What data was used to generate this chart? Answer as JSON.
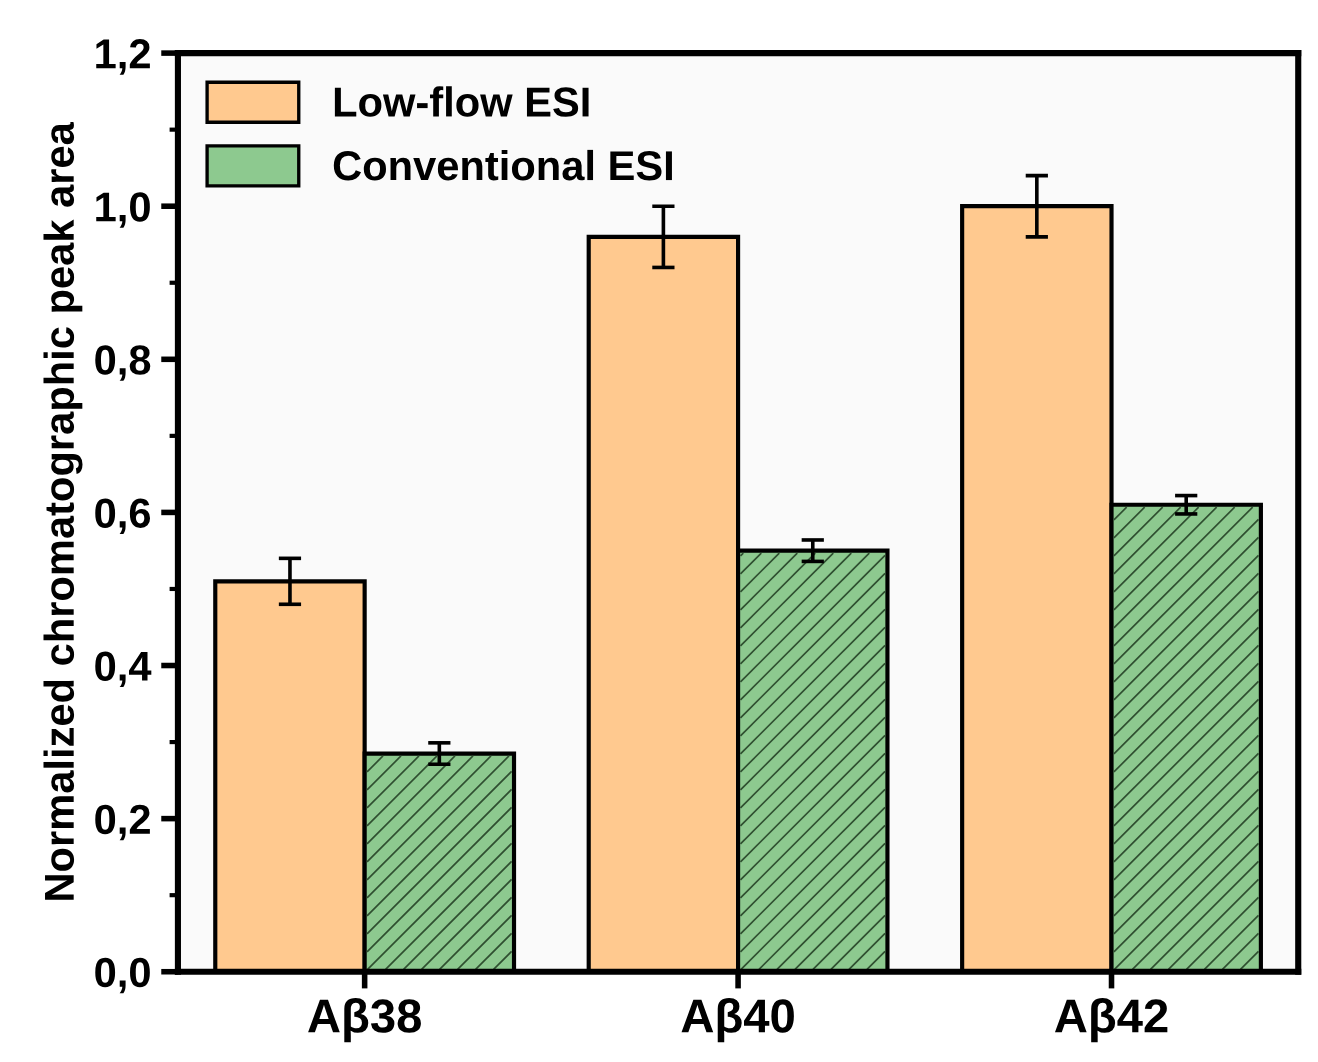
{
  "chart_data": {
    "type": "bar",
    "ylabel": "Normalized chromatographic peak area",
    "categories": [
      "Aβ38",
      "Aβ40",
      "Aβ42"
    ],
    "series": [
      {
        "name": "Low-flow ESI",
        "color": "#ffc98f",
        "values": [
          0.51,
          0.96,
          1.0
        ],
        "errors": [
          0.03,
          0.04,
          0.04
        ]
      },
      {
        "name": "Conventional ESI",
        "color": "#8dc98f",
        "values": [
          0.285,
          0.55,
          0.61
        ],
        "errors": [
          0.014,
          0.014,
          0.012
        ]
      }
    ],
    "ylim": [
      0,
      1.2
    ],
    "yticks": [
      {
        "value": 0,
        "label": "0,0"
      },
      {
        "value": 0.2,
        "label": "0,2"
      },
      {
        "value": 0.4,
        "label": "0,4"
      },
      {
        "value": 0.6,
        "label": "0,6"
      },
      {
        "value": 0.8,
        "label": "0,8"
      },
      {
        "value": 1.0,
        "label": "1,0"
      },
      {
        "value": 1.2,
        "label": "1,2"
      }
    ],
    "grid": false,
    "legend": "top left"
  }
}
